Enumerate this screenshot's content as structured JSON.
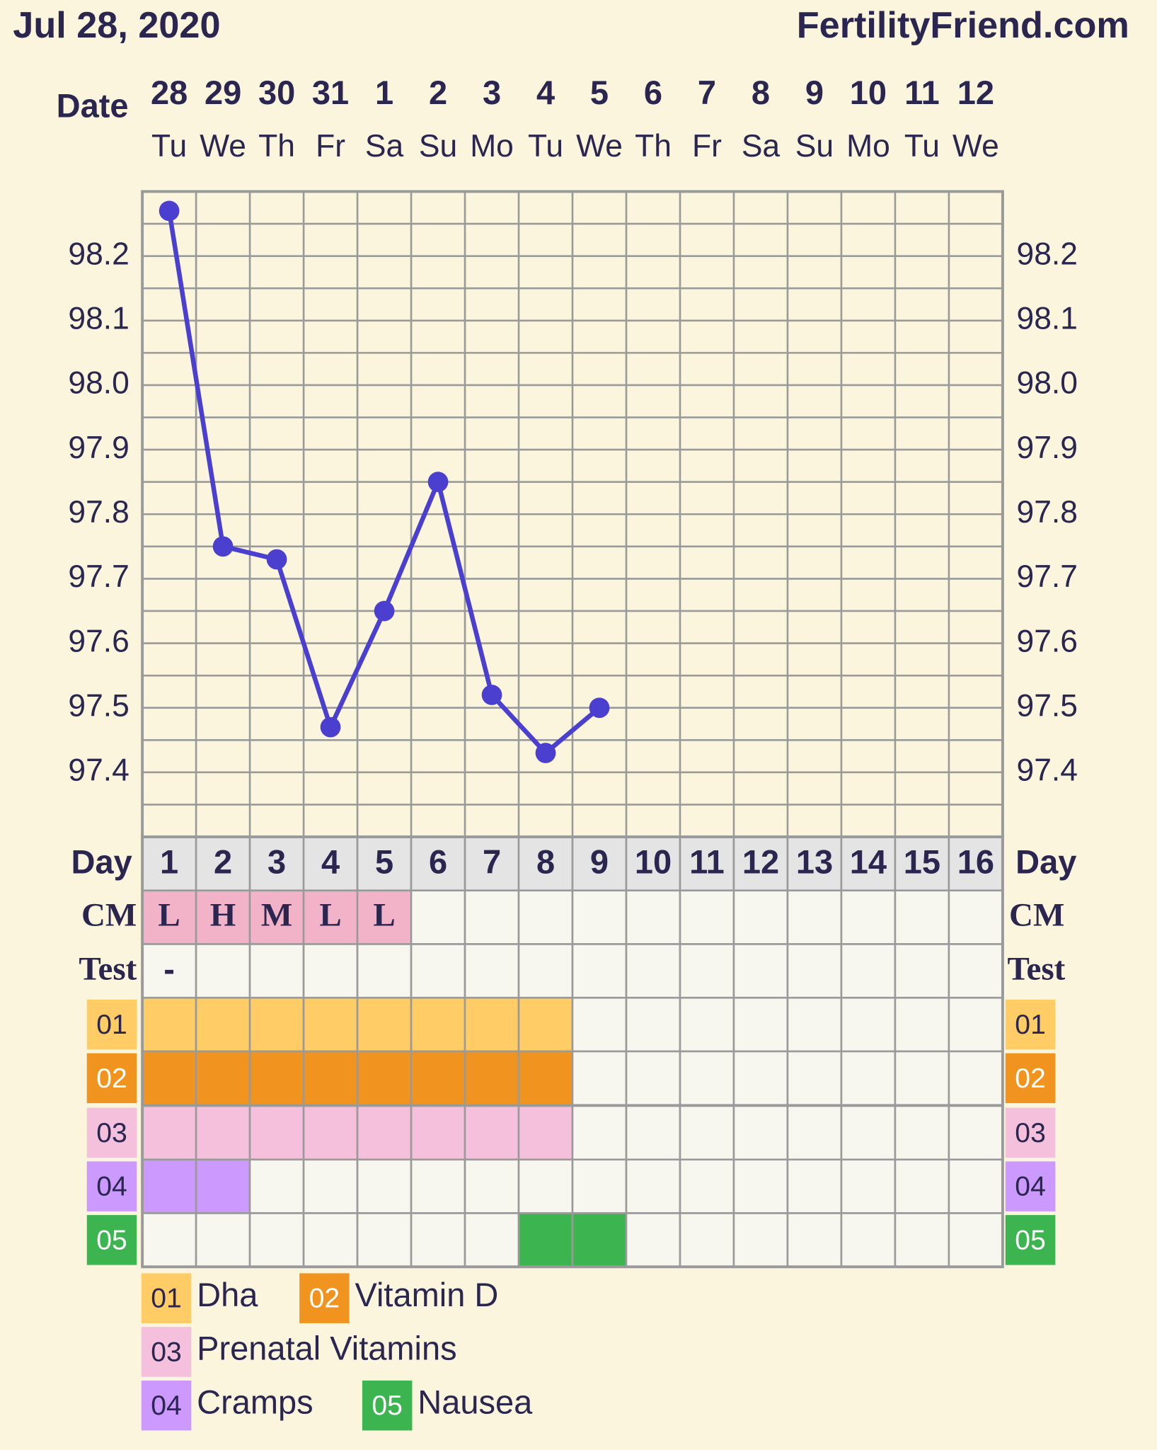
{
  "chart_data": {
    "type": "line",
    "title": "Jul 28, 2020",
    "site": "FertilityFriend.com",
    "date_label": "Date",
    "dates": [
      "28",
      "29",
      "30",
      "31",
      "1",
      "2",
      "3",
      "4",
      "5",
      "6",
      "7",
      "8",
      "9",
      "10",
      "11",
      "12"
    ],
    "weekdays": [
      "Tu",
      "We",
      "Th",
      "Fr",
      "Sa",
      "Su",
      "Mo",
      "Tu",
      "We",
      "Th",
      "Fr",
      "Sa",
      "Su",
      "Mo",
      "Tu",
      "We"
    ],
    "day_label": "Day",
    "categories": [
      "1",
      "2",
      "3",
      "4",
      "5",
      "6",
      "7",
      "8",
      "9",
      "10",
      "11",
      "12",
      "13",
      "14",
      "15",
      "16"
    ],
    "series": [
      {
        "name": "Temperature",
        "color": "#4b3fcf",
        "values": [
          98.27,
          97.75,
          97.73,
          97.47,
          97.65,
          97.85,
          97.52,
          97.43,
          97.5,
          null,
          null,
          null,
          null,
          null,
          null,
          null
        ]
      }
    ],
    "ylim": [
      97.3,
      98.3
    ],
    "yticks": [
      {
        "value": 98.2,
        "label": "98.2"
      },
      98.1,
      {
        "value": 98,
        "label": "98.0"
      },
      97.9,
      97.8,
      97.7,
      97.6,
      {
        "value": 97.5,
        "label": "97.5"
      },
      97.4
    ],
    "minor_yticks": [
      98.25,
      98.15,
      98.05,
      97.95,
      97.85,
      97.75,
      97.65,
      97.55,
      97.45,
      97.35
    ],
    "grid": true,
    "cm_label": "CM",
    "cm": [
      "L",
      "H",
      "M",
      "L",
      "L",
      null,
      null,
      null,
      null,
      null,
      null,
      null,
      null,
      null,
      null,
      null
    ],
    "cm_color": "#f2b3c8",
    "test_label": "Test",
    "test": [
      "-",
      null,
      null,
      null,
      null,
      null,
      null,
      null,
      null,
      null,
      null,
      null,
      null,
      null,
      null,
      null
    ],
    "rows": [
      {
        "code": "01",
        "name": "Dha",
        "color": "#ffcc66",
        "filled": [
          true,
          true,
          true,
          true,
          true,
          true,
          true,
          true,
          false,
          false,
          false,
          false,
          false,
          false,
          false,
          false
        ]
      },
      {
        "code": "02",
        "name": "Vitamin D",
        "color": "#f0941f",
        "filled": [
          true,
          true,
          true,
          true,
          true,
          true,
          true,
          true,
          false,
          false,
          false,
          false,
          false,
          false,
          false,
          false
        ]
      },
      {
        "code": "03",
        "name": "Prenatal Vitamins",
        "color": "#f4c0dc",
        "filled": [
          true,
          true,
          true,
          true,
          true,
          true,
          true,
          true,
          false,
          false,
          false,
          false,
          false,
          false,
          false,
          false
        ]
      },
      {
        "code": "04",
        "name": "Cramps",
        "color": "#cc99ff",
        "filled": [
          true,
          true,
          false,
          false,
          false,
          false,
          false,
          false,
          false,
          false,
          false,
          false,
          false,
          false,
          false,
          false
        ]
      },
      {
        "code": "05",
        "name": "Nausea",
        "color": "#3cb550",
        "filled": [
          false,
          false,
          false,
          false,
          false,
          false,
          false,
          true,
          true,
          false,
          false,
          false,
          false,
          false,
          false,
          false
        ]
      }
    ]
  }
}
